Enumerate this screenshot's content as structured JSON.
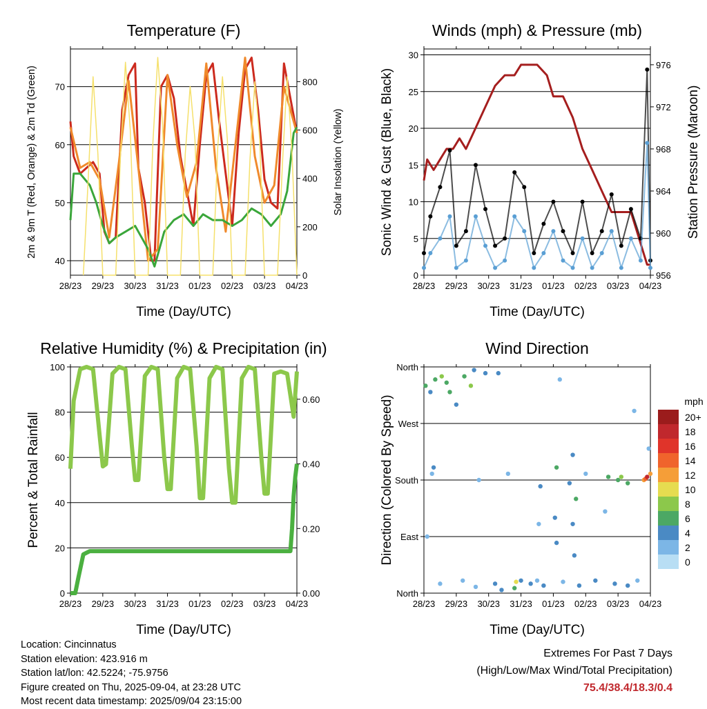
{
  "chart_data": [
    {
      "type": "line",
      "title": "Temperature (F)",
      "xlabel": "Time (Day/UTC)",
      "ylabel": "2m & 9m T (Red, Orange) & 2m Td (Green)",
      "y2label": "Solar Insolation (Yellow)",
      "x_ticks": [
        "28/23",
        "29/23",
        "30/23",
        "31/23",
        "01/23",
        "02/23",
        "03/23",
        "04/23"
      ],
      "ylim": [
        37.5,
        76.5
      ],
      "yticks": [
        "40",
        "50",
        "60",
        "70"
      ],
      "y2lim": [
        0,
        935
      ],
      "y2ticks": [
        "0",
        "200",
        "400",
        "600",
        "800"
      ],
      "grid": true,
      "series": [
        {
          "color": "#cc2a1e",
          "x": [
            0,
            0.1,
            0.3,
            0.5,
            0.7,
            0.9,
            1.05,
            1.2,
            1.4,
            1.6,
            1.8,
            2.0,
            2.1,
            2.3,
            2.5,
            2.6,
            2.8,
            3.0,
            3.2,
            3.4,
            3.6,
            3.8,
            4.0,
            4.2,
            4.4,
            4.6,
            4.8,
            5.0,
            5.2,
            5.4,
            5.6,
            5.8,
            6.0,
            6.2,
            6.4,
            6.6,
            6.8,
            7.0
          ],
          "values": [
            64,
            58,
            55,
            56,
            57,
            55,
            45,
            43,
            44,
            66,
            72,
            74,
            56,
            50,
            40,
            40,
            70,
            72,
            68,
            58,
            52,
            46,
            60,
            72,
            74,
            64,
            55,
            46,
            62,
            73,
            75,
            66,
            54,
            50,
            49,
            74,
            68,
            62
          ]
        },
        {
          "color": "#f08a2c",
          "x": [
            0,
            0.3,
            0.6,
            0.9,
            1.2,
            1.5,
            1.8,
            2.1,
            2.4,
            2.7,
            3.0,
            3.3,
            3.6,
            3.9,
            4.2,
            4.5,
            4.8,
            5.1,
            5.4,
            5.7,
            6.0,
            6.3,
            6.6,
            6.8,
            7.0
          ],
          "values": [
            63,
            56,
            57,
            54,
            44,
            57,
            71,
            56,
            40,
            42,
            72,
            60,
            51,
            57,
            74,
            56,
            45,
            60,
            75,
            58,
            50,
            53,
            70,
            66,
            62
          ]
        },
        {
          "color": "#3aa63a",
          "x": [
            0,
            0.1,
            0.3,
            0.6,
            0.8,
            1.0,
            1.2,
            1.4,
            1.7,
            2.0,
            2.2,
            2.4,
            2.6,
            2.9,
            3.2,
            3.5,
            3.8,
            4.1,
            4.4,
            4.7,
            5.0,
            5.3,
            5.6,
            5.9,
            6.2,
            6.5,
            6.7,
            6.9,
            7.0
          ],
          "values": [
            47,
            55,
            55,
            53,
            50,
            46,
            43,
            44,
            45,
            46,
            44,
            42,
            39,
            45,
            47,
            48,
            46,
            48,
            47,
            47,
            46,
            47,
            49,
            48,
            46,
            48,
            52,
            62,
            63
          ]
        },
        {
          "color": "#f5e06b",
          "x": [
            0.4,
            0.55,
            0.7,
            0.85,
            1.0,
            1.4,
            1.55,
            1.7,
            1.85,
            2.0,
            2.4,
            2.55,
            2.7,
            2.85,
            3.0,
            3.4,
            3.55,
            3.7,
            3.85,
            4.0,
            4.4,
            4.55,
            4.7,
            4.85,
            5.0,
            5.4,
            5.55,
            5.7,
            5.85,
            6.0,
            6.4,
            6.55,
            6.7,
            6.85,
            7.0
          ],
          "values": [
            0,
            400,
            820,
            500,
            0,
            0,
            500,
            880,
            600,
            0,
            0,
            550,
            900,
            620,
            0,
            0,
            500,
            780,
            560,
            0,
            0,
            520,
            820,
            560,
            0,
            0,
            480,
            800,
            560,
            0,
            0,
            450,
            820,
            500,
            0
          ]
        }
      ]
    },
    {
      "type": "scatter",
      "title": "Winds (mph) & Pressure (mb)",
      "xlabel": "Time (Day/UTC)",
      "ylabel": "Sonic Wind & Gust (Blue, Black)",
      "y2label": "Station Pressure (Maroon)",
      "x_ticks": [
        "28/23",
        "29/23",
        "30/23",
        "31/23",
        "01/23",
        "02/23",
        "03/23",
        "04/23"
      ],
      "ylim": [
        0,
        30.8
      ],
      "yticks": [
        "0",
        "5",
        "10",
        "15",
        "20",
        "25",
        "30"
      ],
      "y2lim": [
        956,
        977.5
      ],
      "y2ticks": [
        "956",
        "960",
        "964",
        "968",
        "972",
        "976"
      ],
      "grid": true,
      "series": [
        {
          "color": "#a51e1e",
          "x": [
            0,
            0.1,
            0.3,
            0.5,
            0.7,
            0.9,
            1.1,
            1.3,
            1.6,
            1.9,
            2.2,
            2.5,
            2.8,
            3.0,
            3.2,
            3.5,
            3.8,
            4.0,
            4.3,
            4.6,
            4.9,
            5.2,
            5.5,
            5.8,
            6.1,
            6.4,
            6.6,
            6.8,
            6.9,
            7.0
          ],
          "values": [
            965,
            967,
            966,
            967,
            968,
            968,
            969,
            968,
            970,
            972,
            974,
            975,
            975,
            976,
            976,
            976,
            975,
            973,
            973,
            971,
            968,
            966,
            964,
            962,
            962,
            962,
            960,
            958,
            957,
            957
          ]
        },
        {
          "color": "#000000",
          "x": [
            0,
            0.2,
            0.5,
            0.8,
            1.0,
            1.3,
            1.6,
            1.9,
            2.2,
            2.5,
            2.8,
            3.1,
            3.4,
            3.7,
            4.0,
            4.3,
            4.6,
            4.9,
            5.2,
            5.5,
            5.8,
            6.1,
            6.4,
            6.7,
            6.9,
            7.0
          ],
          "values": [
            3,
            8,
            12,
            17,
            4,
            6,
            15,
            9,
            4,
            5,
            14,
            12,
            3,
            7,
            10,
            6,
            3,
            10,
            3,
            6,
            11,
            4,
            9,
            5,
            28,
            2
          ]
        },
        {
          "color": "#5a9fd4",
          "x": [
            0,
            0.2,
            0.5,
            0.8,
            1.0,
            1.3,
            1.6,
            1.9,
            2.2,
            2.5,
            2.8,
            3.1,
            3.4,
            3.7,
            4.0,
            4.3,
            4.6,
            4.9,
            5.2,
            5.5,
            5.8,
            6.1,
            6.4,
            6.7,
            6.9,
            7.0
          ],
          "values": [
            1,
            3,
            5,
            8,
            1,
            2,
            8,
            4,
            1,
            2,
            8,
            6,
            1,
            3,
            6,
            2,
            1,
            5,
            1,
            3,
            6,
            1,
            5,
            2,
            18,
            1
          ]
        }
      ]
    },
    {
      "type": "line",
      "title": "Relative Humidity (%) & Precipitation (in)",
      "xlabel": "Time (Day/UTC)",
      "ylabel": "Percent & Total Rainfall",
      "x_ticks": [
        "28/23",
        "29/23",
        "30/23",
        "31/23",
        "01/23",
        "02/23",
        "03/23",
        "04/23"
      ],
      "ylim": [
        0,
        100
      ],
      "yticks": [
        "0",
        "20",
        "40",
        "60",
        "80",
        "100"
      ],
      "y2lim": [
        0,
        0.7
      ],
      "y2ticks": [
        "0.00",
        "0.20",
        "0.40",
        "0.60"
      ],
      "grid": true,
      "series": [
        {
          "color": "#8cc84b",
          "x": [
            0,
            0.1,
            0.3,
            0.5,
            0.7,
            0.9,
            1.0,
            1.1,
            1.3,
            1.5,
            1.7,
            1.9,
            2.0,
            2.1,
            2.3,
            2.5,
            2.7,
            2.9,
            3.0,
            3.1,
            3.3,
            3.5,
            3.7,
            3.9,
            4.0,
            4.1,
            4.3,
            4.5,
            4.7,
            4.9,
            5.0,
            5.1,
            5.3,
            5.5,
            5.7,
            5.9,
            6.0,
            6.1,
            6.3,
            6.5,
            6.7,
            6.9,
            7.0
          ],
          "values": [
            55,
            85,
            99,
            100,
            99,
            70,
            56,
            57,
            97,
            100,
            99,
            65,
            50,
            50,
            96,
            100,
            99,
            60,
            46,
            46,
            95,
            100,
            99,
            65,
            42,
            42,
            95,
            100,
            99,
            55,
            40,
            40,
            95,
            100,
            99,
            60,
            44,
            44,
            97,
            98,
            97,
            78,
            98
          ]
        },
        {
          "color": "#4bb040",
          "x": [
            0,
            0.15,
            0.25,
            0.4,
            0.6,
            1.0,
            2.0,
            3.0,
            4.0,
            5.0,
            6.0,
            6.8,
            6.85,
            6.9,
            6.95,
            7.0
          ],
          "values": [
            0,
            0,
            0.05,
            0.12,
            0.13,
            0.13,
            0.13,
            0.13,
            0.13,
            0.13,
            0.13,
            0.13,
            0.2,
            0.3,
            0.36,
            0.4
          ]
        }
      ]
    },
    {
      "type": "scatter",
      "title": "Wind Direction",
      "xlabel": "Time (Day/UTC)",
      "ylabel": "Direction (Colored By Speed)",
      "x_ticks": [
        "28/23",
        "29/23",
        "30/23",
        "31/23",
        "01/23",
        "02/23",
        "03/23",
        "04/23"
      ],
      "yticks": [
        "North",
        "East",
        "South",
        "West",
        "North"
      ],
      "ylim": [
        0,
        360
      ],
      "grid": true,
      "legend": {
        "title": "mph",
        "labels": [
          "20+",
          "18",
          "16",
          "14",
          "12",
          "10",
          "8",
          "6",
          "4",
          "2",
          "0"
        ],
        "colors": [
          "#9b1c1c",
          "#c0282d",
          "#e0342a",
          "#f0642c",
          "#f59e38",
          "#e6dc50",
          "#8cc84b",
          "#4ca864",
          "#4a8ac4",
          "#7cb6e6",
          "#b8def4"
        ]
      },
      "points": [
        {
          "x": 0.05,
          "dir": 330,
          "spd": 6
        },
        {
          "x": 0.2,
          "dir": 320,
          "spd": 4
        },
        {
          "x": 0.35,
          "dir": 340,
          "spd": 5
        },
        {
          "x": 0.55,
          "dir": 345,
          "spd": 8
        },
        {
          "x": 0.7,
          "dir": 335,
          "spd": 6
        },
        {
          "x": 0.8,
          "dir": 320,
          "spd": 5
        },
        {
          "x": 1.0,
          "dir": 300,
          "spd": 3
        },
        {
          "x": 1.25,
          "dir": 345,
          "spd": 6
        },
        {
          "x": 1.45,
          "dir": 330,
          "spd": 7
        },
        {
          "x": 1.55,
          "dir": 355,
          "spd": 4
        },
        {
          "x": 1.9,
          "dir": 350,
          "spd": 4
        },
        {
          "x": 2.3,
          "dir": 350,
          "spd": 3
        },
        {
          "x": 3.5,
          "dir": 20,
          "spd": 2
        },
        {
          "x": 4.2,
          "dir": 340,
          "spd": 1
        },
        {
          "x": 0.25,
          "dir": 190,
          "spd": 2
        },
        {
          "x": 0.3,
          "dir": 200,
          "spd": 3
        },
        {
          "x": 1.7,
          "dir": 180,
          "spd": 1
        },
        {
          "x": 2.6,
          "dir": 190,
          "spd": 2
        },
        {
          "x": 3.6,
          "dir": 170,
          "spd": 3
        },
        {
          "x": 4.5,
          "dir": 175,
          "spd": 4
        },
        {
          "x": 5.0,
          "dir": 190,
          "spd": 2
        },
        {
          "x": 5.7,
          "dir": 185,
          "spd": 5
        },
        {
          "x": 6.0,
          "dir": 180,
          "spd": 6
        },
        {
          "x": 6.1,
          "dir": 185,
          "spd": 7
        },
        {
          "x": 6.3,
          "dir": 175,
          "spd": 6
        },
        {
          "x": 6.8,
          "dir": 180,
          "spd": 11
        },
        {
          "x": 6.85,
          "dir": 182,
          "spd": 14
        },
        {
          "x": 6.9,
          "dir": 185,
          "spd": 17
        },
        {
          "x": 7.0,
          "dir": 190,
          "spd": 12
        },
        {
          "x": 0.5,
          "dir": 15,
          "spd": 2
        },
        {
          "x": 1.2,
          "dir": 20,
          "spd": 1
        },
        {
          "x": 1.6,
          "dir": 10,
          "spd": 2
        },
        {
          "x": 2.2,
          "dir": 15,
          "spd": 3
        },
        {
          "x": 2.4,
          "dir": 5,
          "spd": 4
        },
        {
          "x": 2.8,
          "dir": 8,
          "spd": 6
        },
        {
          "x": 2.85,
          "dir": 18,
          "spd": 9
        },
        {
          "x": 3.0,
          "dir": 20,
          "spd": 4
        },
        {
          "x": 3.3,
          "dir": 15,
          "spd": 3
        },
        {
          "x": 3.7,
          "dir": 12,
          "spd": 3
        },
        {
          "x": 4.3,
          "dir": 18,
          "spd": 2
        },
        {
          "x": 4.8,
          "dir": 12,
          "spd": 4
        },
        {
          "x": 5.3,
          "dir": 20,
          "spd": 3
        },
        {
          "x": 5.9,
          "dir": 15,
          "spd": 3
        },
        {
          "x": 6.3,
          "dir": 12,
          "spd": 4
        },
        {
          "x": 6.6,
          "dir": 20,
          "spd": 1
        },
        {
          "x": 4.05,
          "dir": 120,
          "spd": 3
        },
        {
          "x": 4.1,
          "dir": 80,
          "spd": 4
        },
        {
          "x": 4.6,
          "dir": 110,
          "spd": 4
        },
        {
          "x": 4.7,
          "dir": 150,
          "spd": 5
        },
        {
          "x": 3.55,
          "dir": 110,
          "spd": 2
        },
        {
          "x": 5.6,
          "dir": 130,
          "spd": 1
        },
        {
          "x": 6.95,
          "dir": 230,
          "spd": 2
        },
        {
          "x": 4.65,
          "dir": 60,
          "spd": 3
        },
        {
          "x": 4.1,
          "dir": 200,
          "spd": 5
        },
        {
          "x": 4.6,
          "dir": 220,
          "spd": 4
        },
        {
          "x": 0.1,
          "dir": 90,
          "spd": 1
        },
        {
          "x": 6.5,
          "dir": 290,
          "spd": 1
        }
      ]
    }
  ],
  "info": {
    "location": "Location: Cincinnatus",
    "elevation": "Station elevation: 423.916 m",
    "latlon": "Station lat/lon: 42.5224; -75.9756",
    "created": "Figure created on Thu, 2025-09-04, at 23:28 UTC",
    "recent": "Most recent data timestamp: 2025/09/04 23:15:00"
  },
  "extremes": {
    "line1": "Extremes For Past 7 Days",
    "line2": "(High/Low/Max Wind/Total Precipitation)",
    "values": "75.4/38.4/18.3/0.4"
  }
}
